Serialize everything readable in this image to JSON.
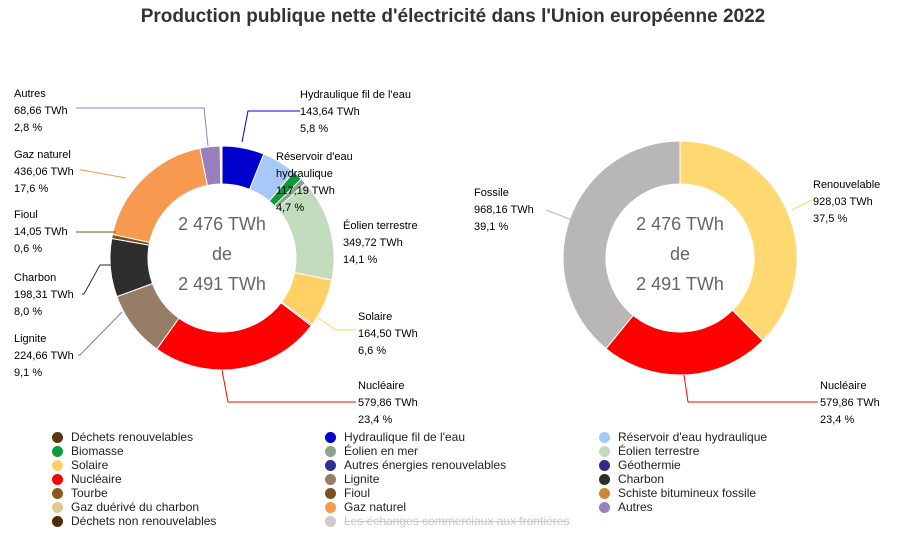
{
  "title": "Production publique nette d'électricité dans l'Union européenne 2022",
  "chart_data": [
    {
      "type": "pie",
      "variant": "donut",
      "center_text": [
        "2 476 TWh",
        "de",
        "2 491 TWh"
      ],
      "slices": [
        {
          "name": "Hydraulique fil de l'eau",
          "value": 143.64,
          "value_label": "143,64 TWh",
          "percent_label": "5,8 %",
          "color": "#0000cc",
          "labeled": true
        },
        {
          "name": "Réservoir d'eau hydraulique",
          "value": 117.19,
          "value_label": "117,19 TWh",
          "percent_label": "4,7 %",
          "color": "#a8c8f8",
          "labeled": true
        },
        {
          "name": "Biomasse",
          "value": 35.0,
          "color": "#0e9a37",
          "labeled": false
        },
        {
          "name": "Éolien en mer",
          "value": 20.0,
          "color": "#8ea290",
          "labeled": false
        },
        {
          "name": "Éolien terrestre",
          "value": 349.72,
          "value_label": "349,72 TWh",
          "percent_label": "14,1 %",
          "color": "#c2dbbd",
          "labeled": true
        },
        {
          "name": "Solaire",
          "value": 164.5,
          "value_label": "164,50 TWh",
          "percent_label": "6,6 %",
          "color": "#ffd165",
          "labeled": true
        },
        {
          "name": "Géothermie",
          "value": 5.0,
          "color": "#2c2c8c",
          "labeled": false
        },
        {
          "name": "Nucléaire",
          "value": 579.86,
          "value_label": "579,86 TWh",
          "percent_label": "23,4 %",
          "color": "#ff0000",
          "labeled": true
        },
        {
          "name": "Lignite",
          "value": 224.66,
          "value_label": "224,66 TWh",
          "percent_label": "9,1 %",
          "color": "#977d66",
          "labeled": true
        },
        {
          "name": "Charbon",
          "value": 198.31,
          "value_label": "198,31 TWh",
          "percent_label": "8,0 %",
          "color": "#2e2e2e",
          "labeled": true
        },
        {
          "name": "Fioul",
          "value": 14.05,
          "value_label": "14,05 TWh",
          "percent_label": "0,6 %",
          "color": "#7b4f22",
          "labeled": true
        },
        {
          "name": "Gaz naturel",
          "value": 436.06,
          "value_label": "436,06 TWh",
          "percent_label": "17,6 %",
          "color": "#f7994e",
          "labeled": true
        },
        {
          "name": "Autres",
          "value": 68.66,
          "value_label": "68,66 TWh",
          "percent_label": "2,8 %",
          "color": "#9a7fbd",
          "labeled": true
        },
        {
          "name": "Déchets non renouvelables",
          "value": 3.0,
          "color": "#4c2d0a",
          "labeled": false
        },
        {
          "name": "Déchets renouvelables",
          "value": 3.0,
          "color": "#5b380c",
          "labeled": false
        }
      ]
    },
    {
      "type": "pie",
      "variant": "donut",
      "center_text": [
        "2 476 TWh",
        "de",
        "2 491 TWh"
      ],
      "slices": [
        {
          "name": "Renouvelable",
          "value": 928.03,
          "value_label": "928,03 TWh",
          "percent_label": "37,5 %",
          "color": "#ffd872",
          "labeled": true
        },
        {
          "name": "Nucléaire",
          "value": 579.86,
          "value_label": "579,86 TWh",
          "percent_label": "23,4 %",
          "color": "#ff0000",
          "labeled": true
        },
        {
          "name": "Fossile",
          "value": 968.16,
          "value_label": "968,16 TWh",
          "percent_label": "39,1 %",
          "color": "#b9b7b5",
          "labeled": true
        }
      ]
    }
  ],
  "legend": [
    {
      "name": "Déchets renouvelables",
      "color": "#5b380c",
      "hidden": false
    },
    {
      "name": "Hydraulique fil de l'eau",
      "color": "#0000cc",
      "hidden": false
    },
    {
      "name": "Réservoir d'eau hydraulique",
      "color": "#a8c8f8",
      "hidden": false
    },
    {
      "name": "Biomasse",
      "color": "#0e9a37",
      "hidden": false
    },
    {
      "name": "Éolien en mer",
      "color": "#8ea290",
      "hidden": false
    },
    {
      "name": "Éolien terrestre",
      "color": "#c2dbbd",
      "hidden": false
    },
    {
      "name": "Solaire",
      "color": "#ffd165",
      "hidden": false
    },
    {
      "name": "Autres énergies renouvelables",
      "color": "#2f2f8f",
      "hidden": false
    },
    {
      "name": "Géothermie",
      "color": "#2c2c8c",
      "hidden": false
    },
    {
      "name": "Nucléaire",
      "color": "#ff0000",
      "hidden": false
    },
    {
      "name": "Lignite",
      "color": "#977d66",
      "hidden": false
    },
    {
      "name": "Charbon",
      "color": "#2e2e2e",
      "hidden": false
    },
    {
      "name": "Tourbe",
      "color": "#8a5a18",
      "hidden": false
    },
    {
      "name": "Fioul",
      "color": "#7b4f22",
      "hidden": false
    },
    {
      "name": "Schiste bitumineux fossile",
      "color": "#c98a34",
      "hidden": false
    },
    {
      "name": "Gaz duérivé du charbon",
      "color": "#e4c690",
      "hidden": false
    },
    {
      "name": "Gaz naturel",
      "color": "#f7994e",
      "hidden": false
    },
    {
      "name": "Autres",
      "color": "#9a7fbd",
      "hidden": false
    },
    {
      "name": "Déchets non renouvelables",
      "color": "#4c2d0a",
      "hidden": false
    },
    {
      "name": "Les échanges commerciaux aux frontières",
      "color": "#cccccc",
      "hidden": true
    }
  ]
}
